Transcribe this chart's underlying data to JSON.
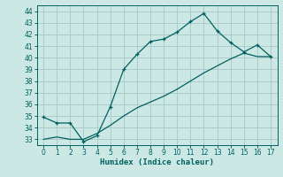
{
  "xlabel": "Humidex (Indice chaleur)",
  "ylabel": "",
  "background_color": "#cce8e4",
  "grid_color": "#aaccca",
  "line_color": "#006060",
  "xlim": [
    -0.5,
    17.5
  ],
  "ylim": [
    32.5,
    44.5
  ],
  "yticks": [
    33,
    34,
    35,
    36,
    37,
    38,
    39,
    40,
    41,
    42,
    43,
    44
  ],
  "xticks": [
    0,
    1,
    2,
    3,
    4,
    5,
    6,
    7,
    8,
    9,
    10,
    11,
    12,
    13,
    14,
    15,
    16,
    17
  ],
  "line1_x": [
    0,
    1,
    2,
    3,
    4,
    5,
    6,
    7,
    8,
    9,
    10,
    11,
    12,
    13,
    14,
    15,
    16,
    17
  ],
  "line1_y": [
    34.9,
    34.4,
    34.4,
    32.8,
    33.3,
    35.8,
    39.0,
    40.3,
    41.4,
    41.6,
    42.2,
    43.1,
    43.8,
    42.3,
    41.3,
    40.5,
    41.1,
    40.1
  ],
  "line2_x": [
    0,
    1,
    2,
    3,
    4,
    5,
    6,
    7,
    8,
    9,
    10,
    11,
    12,
    13,
    14,
    15,
    16,
    17
  ],
  "line2_y": [
    33.0,
    33.2,
    33.0,
    33.0,
    33.5,
    34.2,
    35.0,
    35.7,
    36.2,
    36.7,
    37.3,
    38.0,
    38.7,
    39.3,
    39.9,
    40.4,
    40.1,
    40.1
  ],
  "figwidth": 3.2,
  "figheight": 2.0,
  "dpi": 100
}
